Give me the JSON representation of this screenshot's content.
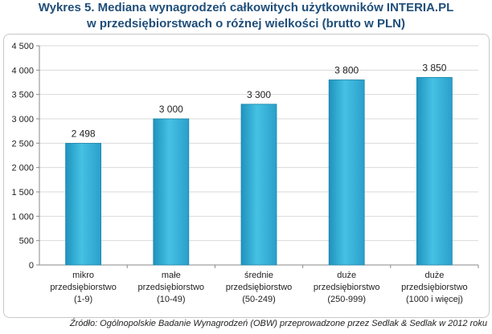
{
  "title_line1": "Wykres 5. Mediana wynagrodzeń całkowitych użytkowników INTERIA.PL",
  "title_line2": "w przedsiębiorstwach o różnej wielkości (brutto w PLN)",
  "source": "Źródło: Ogólnopolskie Badanie Wynagrodzeń (OBW) przeprowadzone przez Sedlak & Sedlak w 2012 roku",
  "colors": {
    "bar_fill": "#3CB6DB",
    "bar_edge": "#1C86A8",
    "grid": "#d9d9d9",
    "axis": "#888888",
    "title": "#1F4E79"
  },
  "chart_data": {
    "type": "bar",
    "categories": [
      [
        "mikro",
        "przedsiębiorstwo",
        "(1-9)"
      ],
      [
        "małe",
        "przedsiębiorstwo",
        "(10-49)"
      ],
      [
        "średnie",
        "przedsiębiorstwo",
        "(50-249)"
      ],
      [
        "duże",
        "przedsiębiorstwo",
        "(250-999)"
      ],
      [
        "duże",
        "przedsiębiorstwo",
        "(1000 i więcej)"
      ]
    ],
    "values": [
      2498,
      3000,
      3300,
      3800,
      3850
    ],
    "data_labels": [
      "2 498",
      "3 000",
      "3 300",
      "3 800",
      "3 850"
    ],
    "yticks": [
      0,
      500,
      1000,
      1500,
      2000,
      2500,
      3000,
      3500,
      4000,
      4500
    ],
    "ytick_labels": [
      "0",
      "500",
      "1 000",
      "1 500",
      "2 000",
      "2 500",
      "3 000",
      "3 500",
      "4 000",
      "4 500"
    ],
    "ylim": [
      0,
      4500
    ],
    "grid": true
  }
}
